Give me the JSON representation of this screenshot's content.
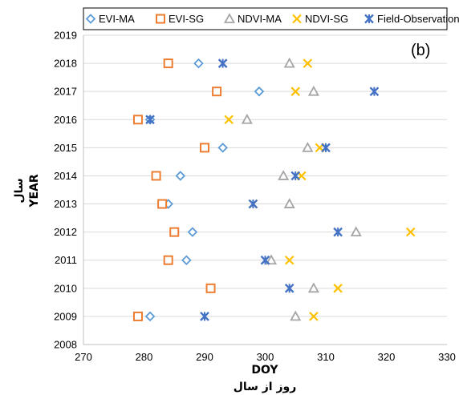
{
  "chart_data": {
    "type": "scatter",
    "panel_label": "(b)",
    "xlabel": "DOY",
    "xlabel_secondary": "روز از سال",
    "ylabel": "YEAR",
    "ylabel_secondary": "سال",
    "xlim": [
      270,
      330
    ],
    "ylim": [
      2008,
      2019
    ],
    "x_ticks": [
      "270",
      "280",
      "290",
      "300",
      "310",
      "320",
      "330"
    ],
    "y_ticks": [
      "2008",
      "2009",
      "2010",
      "2011",
      "2012",
      "2013",
      "2014",
      "2015",
      "2016",
      "2017",
      "2018",
      "2019"
    ],
    "grid": "horizontal",
    "legend_position": "top",
    "series": [
      {
        "name": "EVI-MA",
        "marker": "diamond",
        "color": "#5B9BD5",
        "points": [
          {
            "x": 289,
            "y": 2018
          },
          {
            "x": 299,
            "y": 2017
          },
          {
            "x": 281,
            "y": 2016
          },
          {
            "x": 293,
            "y": 2015
          },
          {
            "x": 286,
            "y": 2014
          },
          {
            "x": 284,
            "y": 2013
          },
          {
            "x": 288,
            "y": 2012
          },
          {
            "x": 287,
            "y": 2011
          },
          {
            "x": 281,
            "y": 2009
          }
        ]
      },
      {
        "name": "EVI-SG",
        "marker": "square",
        "color": "#ED7D31",
        "points": [
          {
            "x": 284,
            "y": 2018
          },
          {
            "x": 292,
            "y": 2017
          },
          {
            "x": 279,
            "y": 2016
          },
          {
            "x": 290,
            "y": 2015
          },
          {
            "x": 282,
            "y": 2014
          },
          {
            "x": 283,
            "y": 2013
          },
          {
            "x": 285,
            "y": 2012
          },
          {
            "x": 284,
            "y": 2011
          },
          {
            "x": 291,
            "y": 2010
          },
          {
            "x": 279,
            "y": 2009
          }
        ]
      },
      {
        "name": "NDVI-MA",
        "marker": "triangle",
        "color": "#A5A5A5",
        "points": [
          {
            "x": 304,
            "y": 2018
          },
          {
            "x": 308,
            "y": 2017
          },
          {
            "x": 297,
            "y": 2016
          },
          {
            "x": 307,
            "y": 2015
          },
          {
            "x": 303,
            "y": 2014
          },
          {
            "x": 304,
            "y": 2013
          },
          {
            "x": 315,
            "y": 2012
          },
          {
            "x": 301,
            "y": 2011
          },
          {
            "x": 308,
            "y": 2010
          },
          {
            "x": 305,
            "y": 2009
          }
        ]
      },
      {
        "name": "NDVI-SG",
        "marker": "x",
        "color": "#FFC000",
        "points": [
          {
            "x": 307,
            "y": 2018
          },
          {
            "x": 305,
            "y": 2017
          },
          {
            "x": 294,
            "y": 2016
          },
          {
            "x": 309,
            "y": 2015
          },
          {
            "x": 306,
            "y": 2014
          },
          {
            "x": 298,
            "y": 2013
          },
          {
            "x": 324,
            "y": 2012
          },
          {
            "x": 304,
            "y": 2011
          },
          {
            "x": 312,
            "y": 2010
          },
          {
            "x": 308,
            "y": 2009
          }
        ]
      },
      {
        "name": "Field-Observation",
        "marker": "star",
        "color": "#4472C4",
        "points": [
          {
            "x": 293,
            "y": 2018
          },
          {
            "x": 318,
            "y": 2017
          },
          {
            "x": 281,
            "y": 2016
          },
          {
            "x": 310,
            "y": 2015
          },
          {
            "x": 305,
            "y": 2014
          },
          {
            "x": 298,
            "y": 2013
          },
          {
            "x": 312,
            "y": 2012
          },
          {
            "x": 300,
            "y": 2011
          },
          {
            "x": 304,
            "y": 2010
          },
          {
            "x": 290,
            "y": 2009
          }
        ]
      }
    ]
  }
}
